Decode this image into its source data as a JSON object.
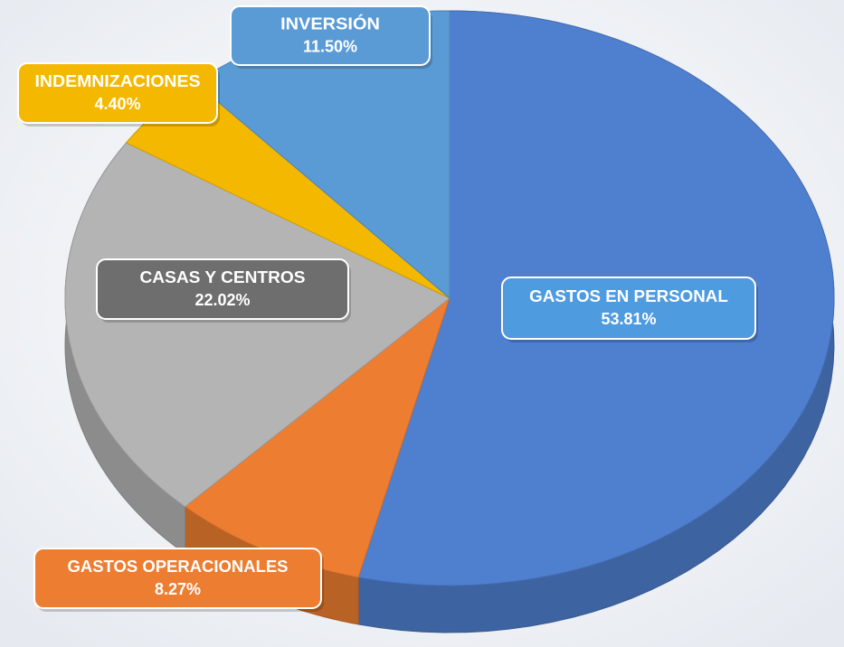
{
  "chart_data": {
    "type": "pie",
    "categories": [
      "GASTOS EN PERSONAL",
      "GASTOS OPERACIONALES",
      "CASAS Y CENTROS",
      "INDEMNIZACIONES",
      "INVERSIÓN"
    ],
    "values": [
      53.81,
      8.27,
      22.02,
      4.4,
      11.5
    ],
    "value_labels": [
      "53.81%",
      "8.27%",
      "22.02%",
      "4.40%",
      "11.50%"
    ],
    "colors": [
      "#4f7fcf",
      "#ed7d31",
      "#b4b4b4",
      "#f5b800",
      "#5b9bd5"
    ],
    "label_colors": [
      "#4e9be0",
      "#ed7d31",
      "#6e6e6e",
      "#f5b800",
      "#5b9bd5"
    ]
  }
}
